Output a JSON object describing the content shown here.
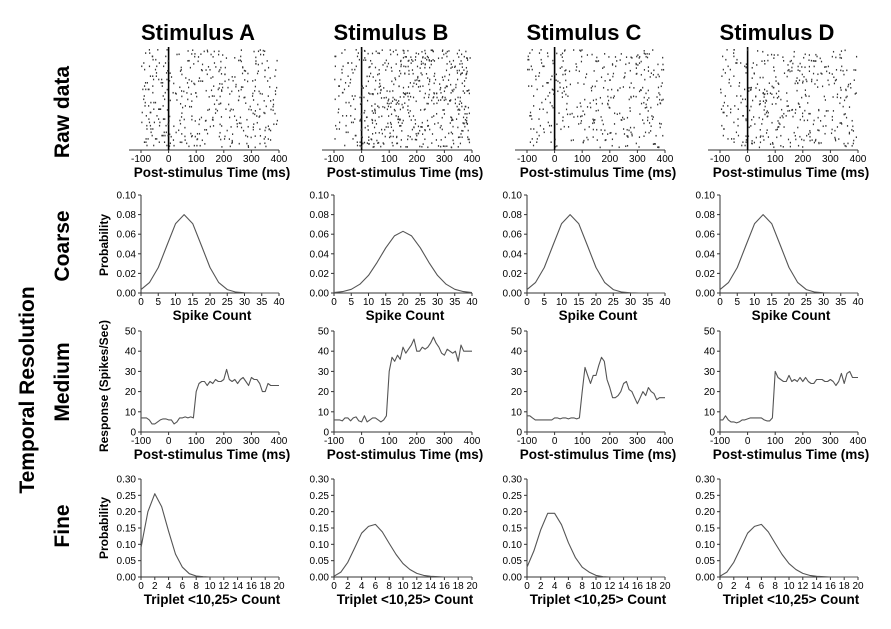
{
  "figure": {
    "row_group_label": "Temporal Resolution",
    "row_labels": [
      "Raw data",
      "Coarse",
      "Medium",
      "Fine"
    ],
    "ylabels": {
      "coarse": "Probability",
      "medium": "Response (Spikes/Sec)",
      "fine": "Probability"
    }
  },
  "chart_data": [
    {
      "type": "scatter",
      "row": "raster",
      "titles": [
        "Stimulus A",
        "Stimulus B",
        "Stimulus C",
        "Stimulus D"
      ],
      "xlabel": "Post-stimulus Time (ms)",
      "xlim": [
        -100,
        400
      ],
      "xticks": [
        -100,
        0,
        100,
        200,
        300,
        400
      ],
      "stimulus_onset": 0,
      "trials": 30,
      "baseline_spikes_per_trial": [
        3,
        2,
        2,
        2
      ],
      "evoked_spikes_per_trial": [
        11,
        17,
        10,
        11
      ]
    },
    {
      "type": "line",
      "row": "coarse",
      "xlabel": "Spike Count",
      "ylabel": "Probability",
      "xlim": [
        0,
        40
      ],
      "ylim": [
        0,
        0.1
      ],
      "xticks": [
        0,
        5,
        10,
        15,
        20,
        25,
        30,
        35,
        40
      ],
      "yticks": [
        "0.00",
        "0.02",
        "0.04",
        "0.06",
        "0.08",
        "0.10"
      ],
      "x": [
        0,
        2.5,
        5,
        7.5,
        10,
        12.5,
        15,
        17.5,
        20,
        22.5,
        25,
        27.5,
        30,
        32.5,
        35,
        37.5,
        40
      ],
      "series": [
        {
          "name": "Stimulus A",
          "values": [
            0.0035,
            0.0108,
            0.026,
            0.0485,
            0.0706,
            0.08,
            0.0706,
            0.0485,
            0.026,
            0.0108,
            0.0035,
            0.0009,
            0.0002,
            0,
            0,
            0,
            0
          ]
        },
        {
          "name": "Stimulus B",
          "values": [
            0.0004,
            0.0014,
            0.0038,
            0.009,
            0.018,
            0.0312,
            0.0461,
            0.0583,
            0.063,
            0.0583,
            0.0461,
            0.0312,
            0.018,
            0.009,
            0.0038,
            0.0014,
            0.0004
          ]
        },
        {
          "name": "Stimulus C",
          "values": [
            0.0035,
            0.0108,
            0.026,
            0.0485,
            0.0706,
            0.08,
            0.0706,
            0.0485,
            0.026,
            0.0108,
            0.0035,
            0.0009,
            0.0002,
            0,
            0,
            0,
            0
          ]
        },
        {
          "name": "Stimulus D",
          "values": [
            0.0035,
            0.0108,
            0.026,
            0.0485,
            0.0706,
            0.08,
            0.0706,
            0.0485,
            0.026,
            0.0108,
            0.0035,
            0.0009,
            0.0002,
            0,
            0,
            0,
            0
          ]
        }
      ]
    },
    {
      "type": "line",
      "row": "medium",
      "xlabel": "Post-stimulus Time (ms)",
      "ylabel": "Response (Spikes/Sec)",
      "xlim": [
        -100,
        400
      ],
      "ylim": [
        0,
        50
      ],
      "xticks": [
        -100,
        0,
        100,
        200,
        300,
        400
      ],
      "yticks": [
        "0",
        "10",
        "20",
        "30",
        "40",
        "50"
      ],
      "x_start": -100,
      "x_step": 10,
      "series": [
        {
          "name": "Stimulus A",
          "values": [
            7,
            7,
            7,
            6,
            4,
            4,
            5,
            6,
            6.5,
            6.5,
            6,
            6,
            4,
            5,
            7,
            7,
            7.5,
            7,
            7.5,
            7,
            20,
            24,
            25,
            25,
            23,
            25,
            24,
            26,
            25,
            25,
            26,
            31,
            26,
            25,
            26,
            24,
            26,
            27,
            25,
            23,
            27,
            26,
            26,
            24,
            20,
            20,
            24,
            23,
            23,
            23,
            23
          ]
        },
        {
          "name": "Stimulus B",
          "values": [
            6,
            6,
            6,
            5.5,
            7,
            7,
            5.5,
            7,
            7.5,
            5.5,
            5,
            8,
            5,
            6,
            7,
            7,
            6,
            5,
            6,
            8,
            30,
            37,
            35,
            38,
            36,
            42,
            39,
            41,
            43,
            46,
            40,
            40,
            42,
            41,
            42,
            44,
            47,
            44,
            42,
            39,
            38,
            41,
            40,
            39,
            40,
            35,
            43,
            40,
            40,
            40,
            40
          ]
        },
        {
          "name": "Stimulus C",
          "values": [
            8,
            8,
            7,
            6,
            6,
            6,
            6,
            6,
            6,
            6,
            7,
            7,
            6.5,
            7,
            7,
            6.5,
            7,
            7,
            6.5,
            7,
            20,
            32,
            28,
            24,
            28,
            28,
            33,
            37,
            35,
            26,
            22,
            17,
            17,
            18,
            20,
            24,
            25,
            21,
            20,
            17,
            14,
            17,
            20,
            18,
            22,
            20,
            19,
            16,
            17,
            17,
            17
          ]
        },
        {
          "name": "Stimulus D",
          "values": [
            6,
            6,
            8,
            6,
            5,
            5,
            4.5,
            5,
            6,
            6,
            6.5,
            7,
            7,
            7,
            7,
            7,
            6,
            5.5,
            5.5,
            7,
            30,
            27,
            26,
            25,
            25,
            28,
            25,
            26,
            25,
            27,
            25,
            27,
            25,
            24,
            24,
            26,
            26,
            26,
            25,
            25,
            26,
            25,
            23,
            25,
            29,
            24,
            29,
            30,
            27,
            27,
            27
          ]
        }
      ]
    },
    {
      "type": "line",
      "row": "fine",
      "xlabel": "Triplet <10,25> Count",
      "ylabel": "Probability",
      "xlim": [
        0,
        20
      ],
      "ylim": [
        0,
        0.3
      ],
      "xticks": [
        0,
        2,
        4,
        6,
        8,
        10,
        12,
        14,
        16,
        18,
        20
      ],
      "yticks": [
        "0.00",
        "0.05",
        "0.10",
        "0.15",
        "0.20",
        "0.25",
        "0.30"
      ],
      "x": [
        0,
        1,
        2,
        3,
        4,
        5,
        6,
        7,
        8,
        9,
        10,
        11,
        12,
        13,
        14,
        15,
        16,
        17,
        18,
        19,
        20
      ],
      "series": [
        {
          "name": "Stimulus A",
          "values": [
            0.09,
            0.2,
            0.255,
            0.215,
            0.14,
            0.07,
            0.03,
            0.01,
            0.003,
            0.001,
            0,
            0,
            0,
            0,
            0,
            0,
            0,
            0,
            0,
            0,
            0
          ]
        },
        {
          "name": "Stimulus B",
          "values": [
            0.0025,
            0.015,
            0.045,
            0.089,
            0.134,
            0.155,
            0.161,
            0.138,
            0.103,
            0.069,
            0.041,
            0.023,
            0.011,
            0.005,
            0.002,
            0.001,
            0,
            0,
            0,
            0,
            0
          ]
        },
        {
          "name": "Stimulus C",
          "values": [
            0.03,
            0.08,
            0.145,
            0.195,
            0.195,
            0.16,
            0.105,
            0.06,
            0.03,
            0.015,
            0.005,
            0.001,
            0,
            0,
            0,
            0,
            0,
            0,
            0,
            0,
            0
          ]
        },
        {
          "name": "Stimulus D",
          "values": [
            0.0025,
            0.015,
            0.045,
            0.089,
            0.134,
            0.155,
            0.161,
            0.138,
            0.103,
            0.069,
            0.041,
            0.023,
            0.011,
            0.005,
            0.002,
            0.001,
            0,
            0,
            0,
            0,
            0
          ]
        }
      ]
    }
  ]
}
